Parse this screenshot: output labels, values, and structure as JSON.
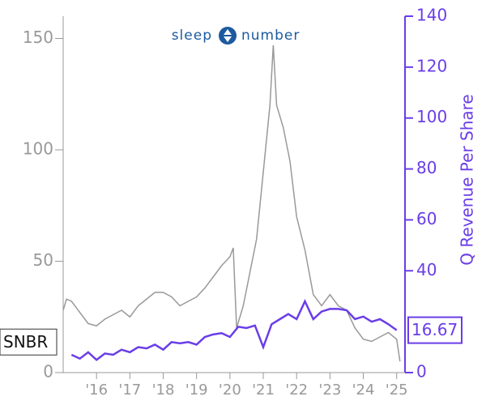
{
  "chart_data": {
    "type": "line",
    "logo": {
      "left": "sleep",
      "right": "number"
    },
    "ticker": "SNBR",
    "y2_label": "Q Revenue Per Share",
    "xlim": [
      2015,
      2025.25
    ],
    "xticks": [
      {
        "value": 2016,
        "label": "'16"
      },
      {
        "value": 2017,
        "label": "'17"
      },
      {
        "value": 2018,
        "label": "'18"
      },
      {
        "value": 2019,
        "label": "'19"
      },
      {
        "value": 2020,
        "label": "'20"
      },
      {
        "value": 2021,
        "label": "'21"
      },
      {
        "value": 2022,
        "label": "'22"
      },
      {
        "value": 2023,
        "label": "'23"
      },
      {
        "value": 2024,
        "label": "'24"
      },
      {
        "value": 2025,
        "label": "'25"
      }
    ],
    "ylim": [
      0,
      160
    ],
    "yticks": [
      0,
      50,
      100,
      150
    ],
    "y2lim": [
      0,
      140
    ],
    "y2ticks": [
      0,
      40,
      60,
      80,
      100,
      120,
      140
    ],
    "series": [
      {
        "color": "#999999",
        "x": [
          2015.0,
          2015.1,
          2015.25,
          2015.5,
          2015.75,
          2016.0,
          2016.25,
          2016.5,
          2016.75,
          2017.0,
          2017.25,
          2017.5,
          2017.75,
          2018.0,
          2018.25,
          2018.5,
          2018.75,
          2019.0,
          2019.25,
          2019.5,
          2019.75,
          2020.0,
          2020.1,
          2020.2,
          2020.4,
          2020.6,
          2020.8,
          2021.0,
          2021.2,
          2021.3,
          2021.4,
          2021.6,
          2021.8,
          2022.0,
          2022.25,
          2022.5,
          2022.75,
          2023.0,
          2023.25,
          2023.5,
          2023.75,
          2024.0,
          2024.25,
          2024.5,
          2024.75,
          2025.0,
          2025.1
        ],
        "values": [
          28,
          33,
          32,
          27,
          22,
          21,
          24,
          26,
          28,
          25,
          30,
          33,
          36,
          36,
          34,
          30,
          32,
          34,
          38,
          43,
          48,
          52,
          56,
          20,
          30,
          45,
          60,
          90,
          120,
          147,
          120,
          110,
          95,
          70,
          55,
          35,
          30,
          35,
          30,
          28,
          20,
          15,
          14,
          16,
          18,
          15,
          5
        ]
      },
      {
        "color": "#6a3de8",
        "axis": "y2",
        "x": [
          2015.25,
          2015.5,
          2015.75,
          2016.0,
          2016.25,
          2016.5,
          2016.75,
          2017.0,
          2017.25,
          2017.5,
          2017.75,
          2018.0,
          2018.25,
          2018.5,
          2018.75,
          2019.0,
          2019.25,
          2019.5,
          2019.75,
          2020.0,
          2020.25,
          2020.5,
          2020.75,
          2021.0,
          2021.25,
          2021.5,
          2021.75,
          2022.0,
          2022.25,
          2022.5,
          2022.75,
          2023.0,
          2023.25,
          2023.5,
          2023.75,
          2024.0,
          2024.25,
          2024.5,
          2024.75,
          2025.0
        ],
        "values": [
          7,
          5.5,
          8,
          5,
          7.5,
          7,
          9,
          8,
          10,
          9.5,
          11,
          9,
          12,
          11.5,
          12,
          11,
          14,
          15,
          15.5,
          14,
          18,
          17.5,
          18.5,
          10,
          19,
          21,
          23,
          21,
          28,
          21,
          24,
          25,
          25,
          24.5,
          21,
          22,
          20,
          21,
          19,
          16.67
        ]
      }
    ]
  }
}
